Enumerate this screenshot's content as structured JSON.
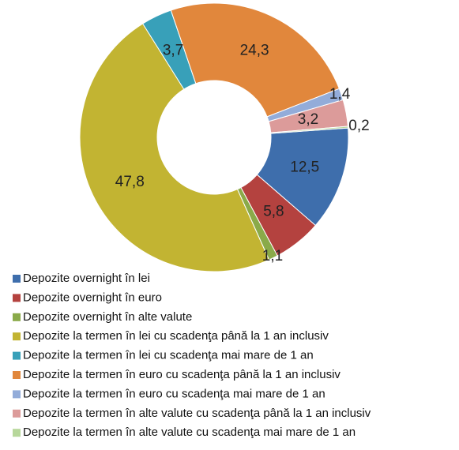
{
  "chart_data": {
    "type": "donut",
    "categories": [
      "Depozite overnight în lei",
      "Depozite overnight în euro",
      "Depozite overnight în alte valute",
      "Depozite la termen în lei  cu scadenţa până la 1 an inclusiv",
      "Depozite la termen în lei  cu scadenţa mai mare de 1 an",
      "Depozite la termen în euro  cu scadenţa până la 1 an inclusiv",
      "Depozite la termen în euro  cu scadenţa mai mare de 1 an",
      "Depozite la termen în alte valute  cu scadenţa până la 1 an inclusiv",
      "Depozite la termen în alte valute  cu scadenţa mai mare de 1 an"
    ],
    "values": [
      12.5,
      5.8,
      1.1,
      47.8,
      3.7,
      24.3,
      1.4,
      3.2,
      0.2
    ],
    "value_labels": [
      "12,5",
      "5,8",
      "1,1",
      "47,8",
      "3,7",
      "24,3",
      "1,4",
      "3,2",
      "0,2"
    ],
    "colors": [
      "#3e6eac",
      "#b4423f",
      "#8aaa49",
      "#c2b432",
      "#38a0b9",
      "#e1873c",
      "#93acd9",
      "#dc9b9a",
      "#b7d79b"
    ]
  }
}
